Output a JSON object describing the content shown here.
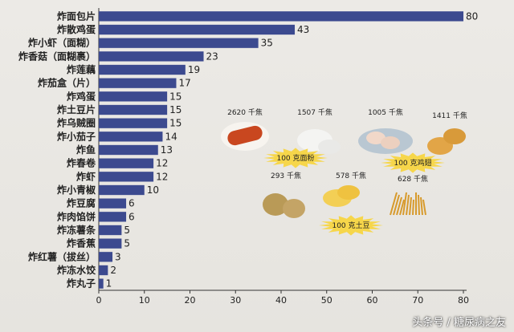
{
  "chart_data": {
    "type": "bar",
    "orientation": "horizontal",
    "categories": [
      "炸面包片",
      "炸散鸡蛋",
      "炸小虾（面糊）",
      "炸香菇（面糊裹）",
      "炸莲藕",
      "炸茄盒（片）",
      "炸鸡蛋",
      "炸土豆片",
      "炸乌贼圈",
      "炸小茄子",
      "炸鱼",
      "炸春卷",
      "炸虾",
      "炸小青椒",
      "炸豆腐",
      "炸肉馅饼",
      "炸冻薯条",
      "炸香蕉",
      "炸红薯（拔丝）",
      "炸冻水饺",
      "炸丸子"
    ],
    "values": [
      80,
      43,
      35,
      23,
      19,
      17,
      15,
      15,
      15,
      14,
      13,
      12,
      12,
      10,
      6,
      6,
      5,
      5,
      3,
      2,
      1
    ],
    "xlim": [
      0,
      80
    ],
    "xticks": [
      0,
      10,
      20,
      30,
      40,
      50,
      60,
      70,
      80
    ],
    "bar_color": "#3c4a8f",
    "grid": false
  },
  "annotations": [
    {
      "label": "2620 千焦",
      "icon": "bread-stick-icon"
    },
    {
      "label": "1507 千焦",
      "icon": "dumpling-icon"
    },
    {
      "label": "1005 千焦",
      "icon": "raw-chicken-wing-icon"
    },
    {
      "label": "1411 千焦",
      "icon": "fried-chicken-wing-icon"
    },
    {
      "label": "293 千焦",
      "icon": "potato-icon"
    },
    {
      "label": "578 千焦",
      "icon": "potato-chips-icon"
    },
    {
      "label": "628 千焦",
      "icon": "french-fries-icon"
    }
  ],
  "bursts": [
    {
      "label": "100 克面粉"
    },
    {
      "label": "100 克鸡翅"
    },
    {
      "label": "100 克土豆"
    }
  ],
  "watermark": "头条号 / 糖尿病之友"
}
